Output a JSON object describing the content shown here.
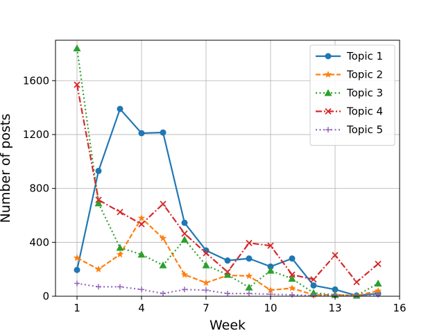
{
  "chart_data": {
    "type": "line",
    "title": "",
    "xlabel": "Week",
    "ylabel": "Number of posts",
    "xlim": [
      0,
      16
    ],
    "ylim": [
      0,
      1900
    ],
    "xticks": [
      1,
      4,
      7,
      10,
      13,
      16
    ],
    "yticks": [
      0,
      400,
      800,
      1200,
      1600
    ],
    "grid": true,
    "legend_position": "top-right",
    "x": [
      1,
      2,
      3,
      4,
      5,
      6,
      7,
      8,
      9,
      10,
      11,
      12,
      13,
      14,
      15
    ],
    "series": [
      {
        "name": "Topic 1",
        "color": "#1f77b4",
        "linestyle": "solid",
        "marker": "circle",
        "values": [
          195,
          930,
          1390,
          1210,
          1215,
          545,
          340,
          265,
          280,
          220,
          280,
          80,
          50,
          5,
          20
        ]
      },
      {
        "name": "Topic 2",
        "color": "#ff7f0e",
        "linestyle": "dashed",
        "marker": "star",
        "values": [
          285,
          200,
          310,
          580,
          430,
          160,
          100,
          155,
          150,
          45,
          60,
          10,
          10,
          5,
          40
        ]
      },
      {
        "name": "Topic 3",
        "color": "#2ca02c",
        "linestyle": "dotted",
        "marker": "triangle",
        "values": [
          1840,
          690,
          360,
          310,
          230,
          420,
          230,
          160,
          65,
          190,
          130,
          25,
          10,
          5,
          95
        ]
      },
      {
        "name": "Topic 4",
        "color": "#d62728",
        "linestyle": "dashdot",
        "marker": "x",
        "values": [
          1570,
          715,
          625,
          535,
          685,
          465,
          320,
          180,
          395,
          375,
          160,
          125,
          305,
          105,
          240
        ]
      },
      {
        "name": "Topic 5",
        "color": "#9467bd",
        "linestyle": "dotted",
        "marker": "plus",
        "values": [
          95,
          70,
          70,
          50,
          20,
          50,
          45,
          20,
          20,
          15,
          10,
          5,
          5,
          5,
          10
        ]
      }
    ]
  }
}
